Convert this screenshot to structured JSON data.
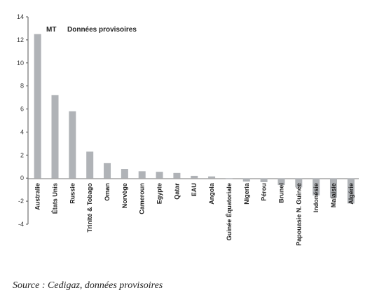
{
  "chart_data": {
    "type": "bar",
    "unit_label": "MT",
    "title": "Données provisoires",
    "categories": [
      "Australie",
      "États Unis",
      "Russie",
      "Trinité & Tobago",
      "Oman",
      "Norvège",
      "Cameroun",
      "Egypte",
      "Qatar",
      "EAU",
      "Angola",
      "Guinée Équatoriale",
      "Nigeria",
      "Pérou",
      "Brunei",
      "Papouasie N. Guinée",
      "Indonésie",
      "Malaisie",
      "Algérie"
    ],
    "values": [
      12.5,
      7.2,
      5.8,
      2.3,
      1.3,
      0.8,
      0.6,
      0.55,
      0.45,
      0.2,
      0.15,
      -0.05,
      -0.3,
      -0.35,
      -0.6,
      -0.8,
      -1.5,
      -1.7,
      -2.2
    ],
    "ylim": [
      -4,
      14
    ],
    "yticks": [
      14,
      12,
      10,
      8,
      6,
      4,
      2,
      0,
      -2,
      -4
    ],
    "xlabel": "",
    "ylabel": "",
    "grid": false,
    "bar_color": "#b0b3b7"
  },
  "source": "Source : Cedigaz, données provisoires"
}
